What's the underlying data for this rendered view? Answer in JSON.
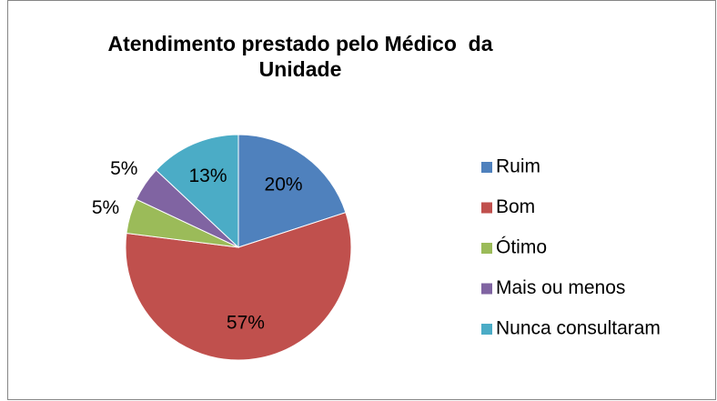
{
  "chart_data": {
    "type": "pie",
    "title": "Atendimento prestado pelo Médico  da Unidade",
    "categories": [
      "Ruim",
      "Bom",
      "Ótimo",
      "Mais ou menos",
      "Nunca consultaram"
    ],
    "values": [
      20,
      57,
      5,
      5,
      13
    ],
    "value_labels": [
      "20%",
      "57%",
      "5%",
      "5%",
      "13%"
    ],
    "colors": [
      "#4f81bd",
      "#c0504d",
      "#9bbb59",
      "#8064a2",
      "#4bacc6"
    ],
    "legend": "right"
  }
}
